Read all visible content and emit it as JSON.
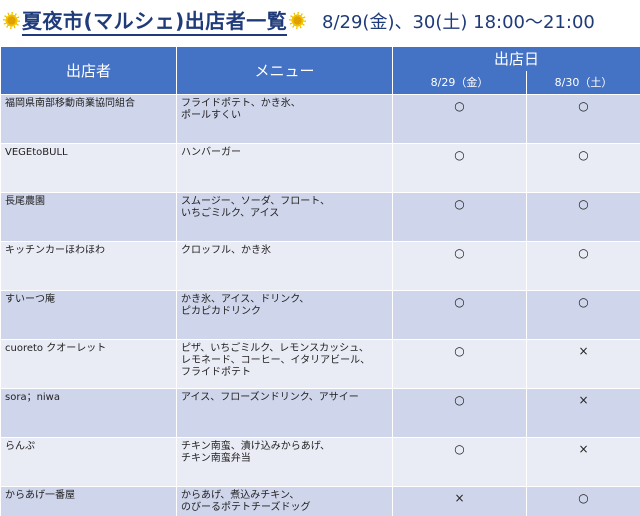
{
  "header": {
    "title": "夏夜市(マルシェ)出店者一覧",
    "dates": "8/29(金)、30(土) 18:00〜21:00"
  },
  "table": {
    "col_vendor": "出店者",
    "col_menu": "メニュー",
    "col_days": "出店日",
    "day1": "8/29（金）",
    "day2": "8/30（土）",
    "rows": [
      {
        "vendor": "福岡県南部移動商業協同組合",
        "menu": "フライドポテト、かき氷、\nポールすくい",
        "d1": "○",
        "d2": "○"
      },
      {
        "vendor": "VEGEtoBULL",
        "menu": "ハンバーガー",
        "d1": "○",
        "d2": "○"
      },
      {
        "vendor": "長尾農園",
        "menu": "スムージー、ソーダ、フロート、\nいちごミルク、アイス",
        "d1": "○",
        "d2": "○"
      },
      {
        "vendor": "キッチンカーほわほわ",
        "menu": "クロッフル、かき氷",
        "d1": "○",
        "d2": "○"
      },
      {
        "vendor": "すいーつ庵",
        "menu": "かき氷、アイス、ドリンク、\nピカピカドリンク",
        "d1": "○",
        "d2": "○"
      },
      {
        "vendor": "cuoreto クオーレット",
        "menu": "ピザ、いちごミルク、レモンスカッシュ、\nレモネード、コーヒー、イタリアビール、\nフライドポテト",
        "d1": "○",
        "d2": "×"
      },
      {
        "vendor": "sora；niwa",
        "menu": "アイス、フローズンドリンク、アサイー",
        "d1": "○",
        "d2": "×"
      },
      {
        "vendor": "らんぷ",
        "menu": "チキン南蛮、漬け込みからあげ、\nチキン南蛮弁当",
        "d1": "○",
        "d2": "×"
      },
      {
        "vendor": "からあげ一番屋",
        "menu": "からあげ、煮込みチキン、\nのびーるポテトチーズドッグ",
        "d1": "×",
        "d2": "○"
      }
    ]
  }
}
